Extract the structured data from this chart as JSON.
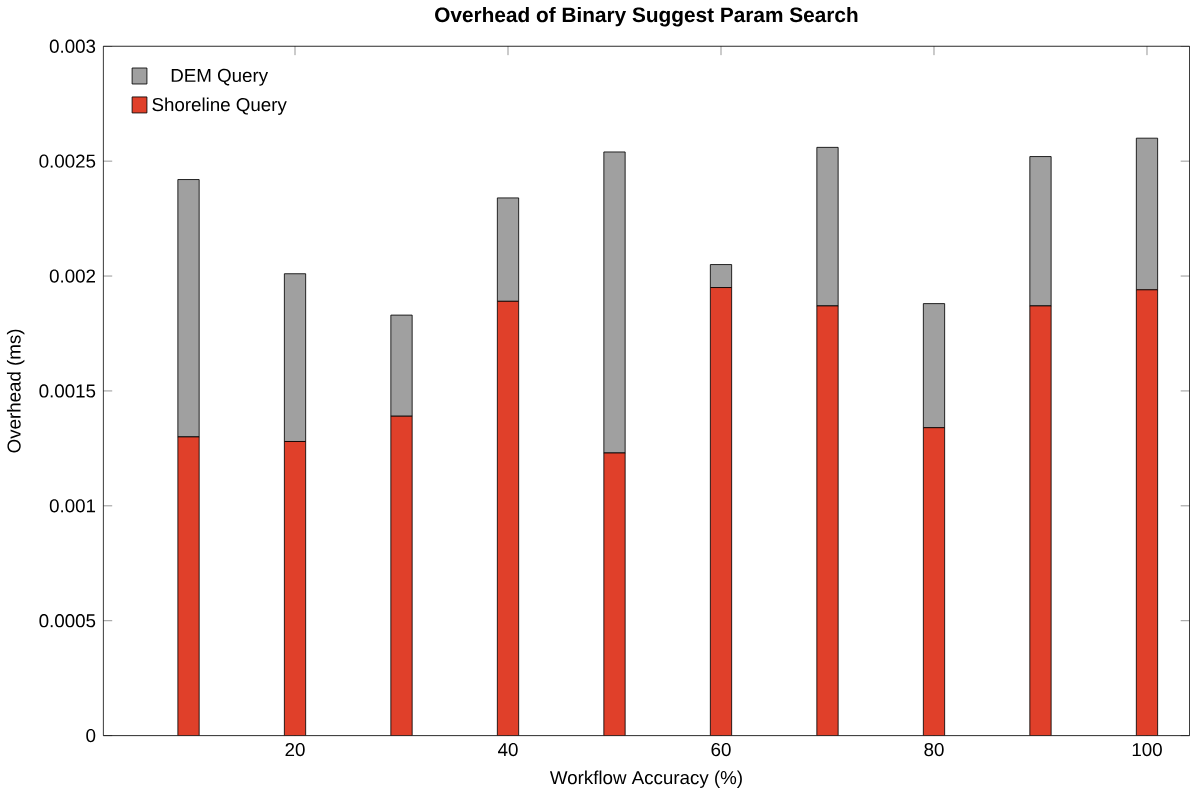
{
  "chart_data": {
    "type": "bar",
    "stacked": true,
    "title": "Overhead of Binary Suggest Param Search",
    "xlabel": "Workflow Accuracy (%)",
    "ylabel": "Overhead (ms)",
    "x": [
      10,
      20,
      30,
      40,
      50,
      60,
      70,
      80,
      90,
      100
    ],
    "series": [
      {
        "name": "Shoreline Query",
        "color": "#e0402a",
        "values": [
          0.0013,
          0.00128,
          0.00139,
          0.00189,
          0.00123,
          0.00195,
          0.00187,
          0.00134,
          0.00187,
          0.00194
        ]
      },
      {
        "name": "DEM Query",
        "color": "#a0a0a0",
        "values": [
          0.00112,
          0.00073,
          0.00044,
          0.00045,
          0.00131,
          0.0001,
          0.00069,
          0.00054,
          0.00065,
          0.00066
        ]
      }
    ],
    "xlim": [
      2,
      104
    ],
    "xticks": [
      20,
      40,
      60,
      80,
      100
    ],
    "ylim": [
      0,
      0.003
    ],
    "yticks": [
      0,
      0.0005,
      0.001,
      0.0015,
      0.002,
      0.0025,
      0.003
    ],
    "legend": "top left",
    "grid": false
  }
}
